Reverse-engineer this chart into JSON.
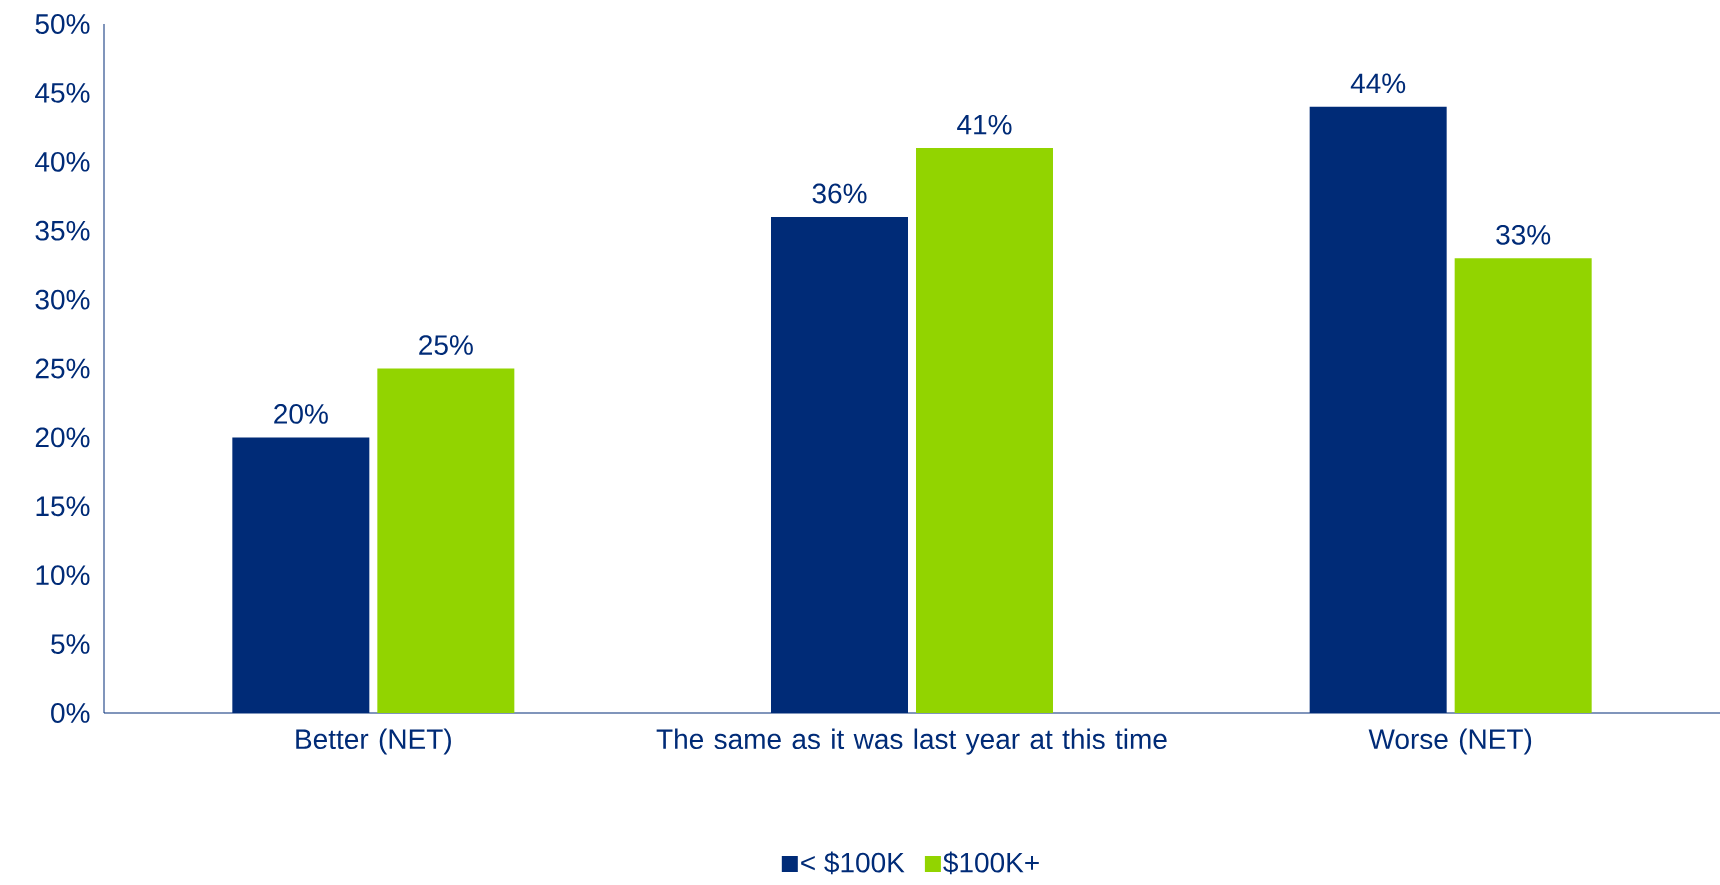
{
  "chart_data": {
    "type": "bar",
    "categories": [
      "Better (NET)",
      "The same as it was last year at this time",
      "Worse (NET)"
    ],
    "series": [
      {
        "name": "< $100K",
        "color": "#002b77",
        "values": [
          20,
          36,
          44
        ],
        "value_labels": [
          "20%",
          "36%",
          "44%"
        ]
      },
      {
        "name": "$100K+",
        "color": "#92d400",
        "values": [
          25,
          41,
          33
        ],
        "value_labels": [
          "25%",
          "41%",
          "33%"
        ]
      }
    ],
    "ylim": [
      0,
      50
    ],
    "yticks": [
      {
        "value": 0,
        "label": "0%"
      },
      {
        "value": 5,
        "label": "5%"
      },
      {
        "value": 10,
        "label": "10%"
      },
      {
        "value": 15,
        "label": "15%"
      },
      {
        "value": 20,
        "label": "20%"
      },
      {
        "value": 25,
        "label": "25%"
      },
      {
        "value": 30,
        "label": "30%"
      },
      {
        "value": 35,
        "label": "35%"
      },
      {
        "value": 40,
        "label": "40%"
      },
      {
        "value": 45,
        "label": "45%"
      },
      {
        "value": 50,
        "label": "50%"
      }
    ],
    "grid": false,
    "legend": "bottom"
  }
}
